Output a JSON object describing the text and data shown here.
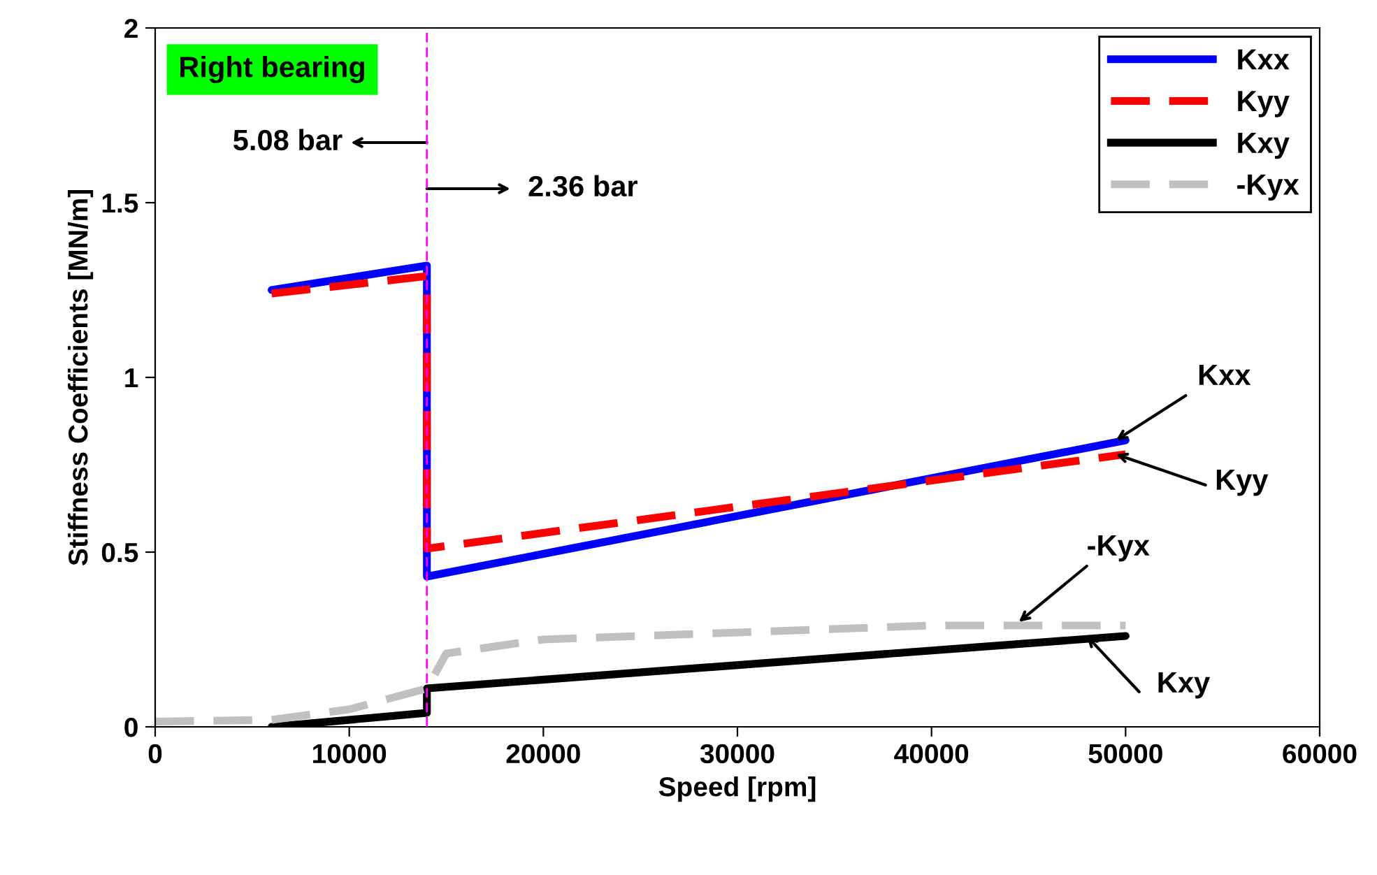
{
  "chart_data": {
    "type": "line",
    "title": "Right bearing",
    "xlabel": "Speed [rpm]",
    "ylabel": "Stiffness Coefficients [MN/m]",
    "xlim": [
      0,
      60000
    ],
    "xticks": [
      0,
      10000,
      20000,
      30000,
      40000,
      50000,
      60000
    ],
    "ylim": [
      0,
      2
    ],
    "yticks": [
      0,
      0.5,
      1,
      1.5,
      2
    ],
    "grid": false,
    "legend": "top right",
    "series": [
      {
        "name": "Kxx",
        "color": "#0000ff",
        "line_style": "solid",
        "x": [
          6000,
          14000,
          14000,
          50000
        ],
        "values": [
          1.25,
          1.32,
          0.43,
          0.82
        ]
      },
      {
        "name": "Kyy",
        "color": "#ff0000",
        "line_style": "dashed",
        "x": [
          6000,
          14000,
          14000,
          50000
        ],
        "values": [
          1.24,
          1.29,
          0.51,
          0.78
        ]
      },
      {
        "name": "Kxy",
        "color": "#000000",
        "line_style": "solid",
        "x": [
          6000,
          14000,
          14000,
          50000
        ],
        "values": [
          0,
          0.04,
          0.11,
          0.26
        ]
      },
      {
        "name": "-Kyx",
        "color": "#c0c0c0",
        "line_style": "dashed",
        "x": [
          0,
          6000,
          10000,
          14000,
          15000,
          20000,
          30000,
          40000,
          50000
        ],
        "values": [
          0.015,
          0.02,
          0.05,
          0.11,
          0.21,
          0.25,
          0.27,
          0.29,
          0.29
        ]
      }
    ],
    "ref_lines": [
      {
        "axis": "x",
        "value": 14000,
        "color": "#ff00ff",
        "line_style": "dashed"
      }
    ],
    "annotations": [
      "5.08 bar",
      "2.36 bar",
      {
        "text": "Kxx",
        "x": 49500,
        "y": 0.82
      },
      {
        "text": "Kyy",
        "x": 49500,
        "y": 0.78
      },
      {
        "text": "-Kyx",
        "x": 44500,
        "y": 0.3
      },
      {
        "text": "Kxy",
        "x": 48000,
        "y": 0.26
      }
    ]
  }
}
